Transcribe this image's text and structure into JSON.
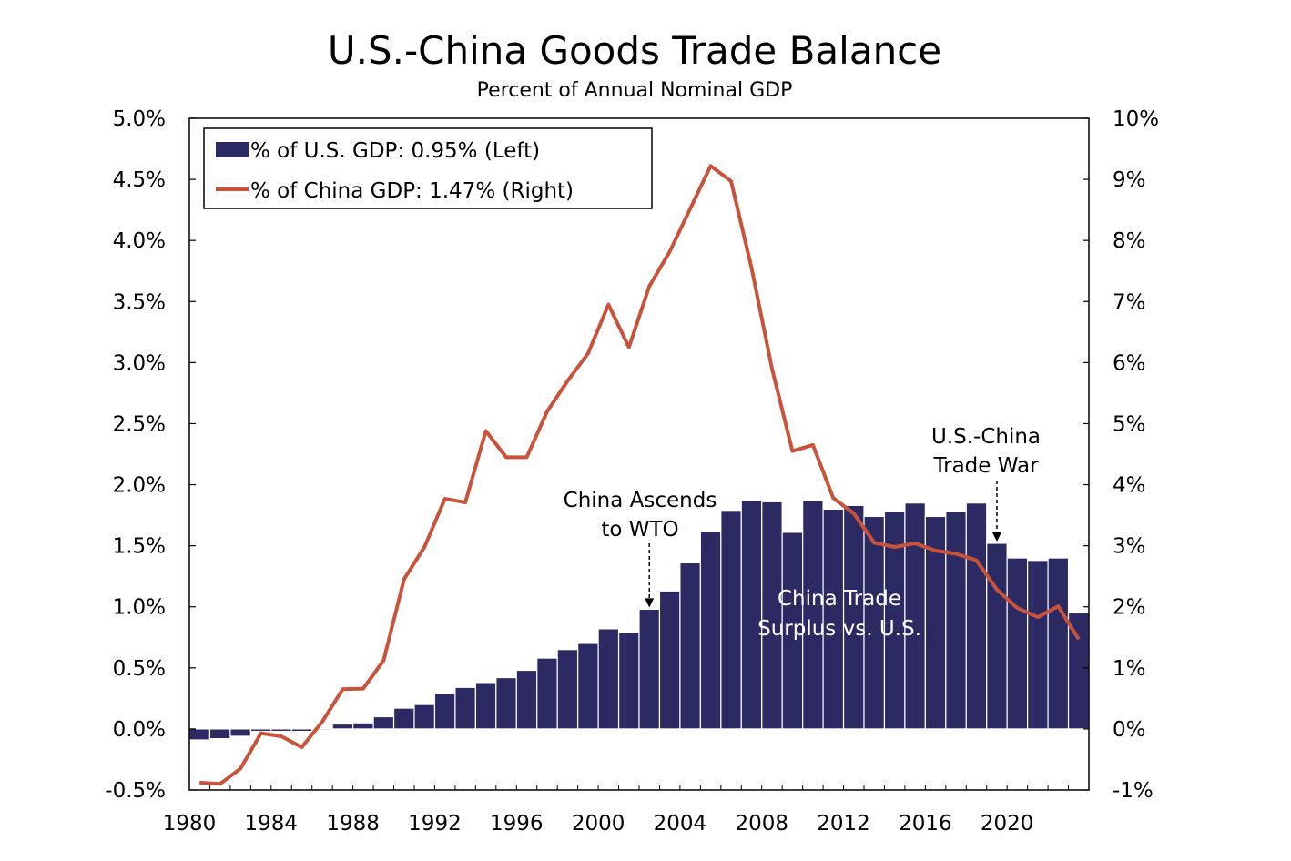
{
  "chart_data": {
    "type": "bar+line",
    "title": "U.S.-China Goods Trade Balance",
    "subtitle": "Percent of Annual Nominal GDP",
    "years": [
      1980,
      1981,
      1982,
      1983,
      1984,
      1985,
      1986,
      1987,
      1988,
      1989,
      1990,
      1991,
      1992,
      1993,
      1994,
      1995,
      1996,
      1997,
      1998,
      1999,
      2000,
      2001,
      2002,
      2003,
      2004,
      2005,
      2006,
      2007,
      2008,
      2009,
      2010,
      2011,
      2012,
      2013,
      2014,
      2015,
      2016,
      2017,
      2018,
      2019,
      2020,
      2021,
      2022,
      2023
    ],
    "x_tick_labels": [
      "1980",
      "1984",
      "1988",
      "1992",
      "1996",
      "2000",
      "2004",
      "2008",
      "2012",
      "2016",
      "2020"
    ],
    "left_axis": {
      "ylim": [
        -0.5,
        5.0
      ],
      "ticks": [
        -0.5,
        0.0,
        0.5,
        1.0,
        1.5,
        2.0,
        2.5,
        3.0,
        3.5,
        4.0,
        4.5,
        5.0
      ],
      "tick_labels": [
        "-0.5%",
        "0.0%",
        "0.5%",
        "1.0%",
        "1.5%",
        "2.0%",
        "2.5%",
        "3.0%",
        "3.5%",
        "4.0%",
        "4.5%",
        "5.0%"
      ]
    },
    "right_axis": {
      "ylim": [
        -1,
        10
      ],
      "ticks": [
        -1,
        0,
        1,
        2,
        3,
        4,
        5,
        6,
        7,
        8,
        9,
        10
      ],
      "tick_labels": [
        "-1%",
        "0%",
        "1%",
        "2%",
        "3%",
        "4%",
        "5%",
        "6%",
        "7%",
        "8%",
        "9%",
        "10%"
      ]
    },
    "series": [
      {
        "name": "% of U.S. GDP: 0.95% (Left)",
        "type": "bar",
        "axis": "left",
        "color": "#2c2a63",
        "values": [
          -0.09,
          -0.08,
          -0.06,
          -0.02,
          -0.02,
          -0.02,
          -0.01,
          0.04,
          0.05,
          0.1,
          0.17,
          0.2,
          0.29,
          0.34,
          0.38,
          0.42,
          0.48,
          0.58,
          0.65,
          0.7,
          0.82,
          0.79,
          0.98,
          1.13,
          1.36,
          1.62,
          1.79,
          1.87,
          1.86,
          1.61,
          1.87,
          1.8,
          1.83,
          1.74,
          1.78,
          1.85,
          1.74,
          1.78,
          1.85,
          1.52,
          1.4,
          1.38,
          1.4,
          0.95
        ]
      },
      {
        "name": "% of China GDP: 1.47% (Right)",
        "type": "line",
        "axis": "right",
        "color": "#c8533a",
        "values": [
          -0.88,
          -0.9,
          -0.65,
          -0.07,
          -0.12,
          -0.3,
          0.12,
          0.65,
          0.66,
          1.12,
          2.45,
          2.98,
          3.77,
          3.71,
          4.88,
          4.45,
          4.45,
          5.2,
          5.7,
          6.15,
          6.95,
          6.25,
          7.25,
          7.82,
          8.52,
          9.22,
          8.97,
          7.55,
          5.9,
          4.55,
          4.65,
          3.78,
          3.53,
          3.05,
          2.98,
          3.04,
          2.92,
          2.87,
          2.76,
          2.28,
          1.98,
          1.83,
          2.01,
          1.47
        ]
      }
    ],
    "legend_position": "top-left",
    "annotations": [
      {
        "id": "wto",
        "lines": [
          "China Ascends",
          "to WTO"
        ],
        "year": 2002,
        "arrow": "dashed"
      },
      {
        "id": "tradewar",
        "lines": [
          "U.S.-China",
          "Trade War"
        ],
        "year": 2019,
        "arrow": "dashed"
      },
      {
        "id": "surplus",
        "lines": [
          "China Trade",
          "Surplus vs. U.S."
        ],
        "color": "#ffffff"
      }
    ],
    "grid": false
  }
}
